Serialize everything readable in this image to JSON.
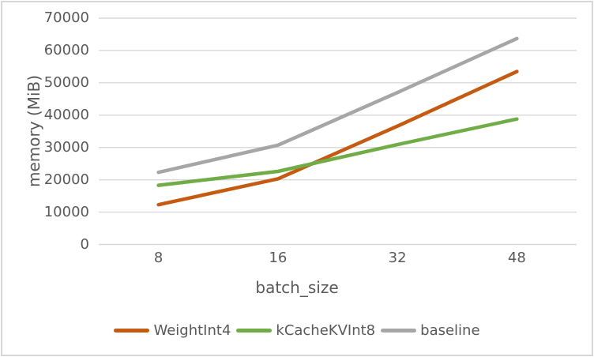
{
  "chart_data": {
    "type": "line",
    "title": "",
    "xlabel": "batch_size",
    "ylabel": "memory (MiB)",
    "categories": [
      "8",
      "16",
      "32",
      "48"
    ],
    "series": [
      {
        "name": "WeightInt4",
        "color": "#C55A11",
        "values": [
          12300,
          20300,
          36600,
          53500
        ]
      },
      {
        "name": "kCacheKVInt8",
        "color": "#70AD47",
        "values": [
          18300,
          22600,
          30900,
          38800
        ]
      },
      {
        "name": "baseline",
        "color": "#A6A6A6",
        "values": [
          22300,
          30700,
          47000,
          63700
        ]
      }
    ],
    "ylim": [
      0,
      70000
    ],
    "yticks": [
      0,
      10000,
      20000,
      30000,
      40000,
      50000,
      60000,
      70000
    ],
    "grid": "horizontal-only",
    "legend_position": "bottom-center",
    "colors": {
      "text": "#595959",
      "gridline": "#d9d9d9",
      "background": "#ffffff",
      "frame_border": "#d7d7da"
    }
  }
}
